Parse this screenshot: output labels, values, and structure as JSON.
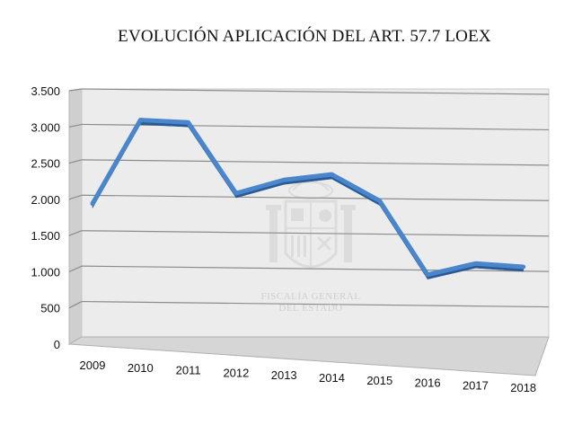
{
  "chart_data": {
    "type": "line",
    "title": "EVOLUCIÓN APLICACIÓN DEL ART. 57.7 LOEX",
    "xlabel": "",
    "ylabel": "",
    "categories": [
      "2009",
      "2010",
      "2011",
      "2012",
      "2013",
      "2014",
      "2015",
      "2016",
      "2017",
      "2018"
    ],
    "series": [
      {
        "values": [
          1950,
          3150,
          3150,
          2200,
          2420,
          2530,
          2200,
          1220,
          1410,
          1400
        ]
      }
    ],
    "ylim": [
      0,
      3500
    ],
    "yticks": [
      0,
      500,
      1000,
      1500,
      2000,
      2500,
      3000,
      3500
    ],
    "ytick_labels": [
      "0",
      "500",
      "1.000",
      "1.500",
      "2.000",
      "2.500",
      "3.000",
      "3.500"
    ],
    "grid": true,
    "legend": "none",
    "style": "3d",
    "colors": {
      "line": "#4a86cc",
      "line_dark": "#2a5a94",
      "grid": "#8c8c8c",
      "wall": "#ececec",
      "floor": "#d6d6d6"
    }
  },
  "watermark": {
    "name": "coat-of-arms-icon",
    "line1": "FISCALÍA GENERAL",
    "line2": "DEL ESTADO"
  }
}
